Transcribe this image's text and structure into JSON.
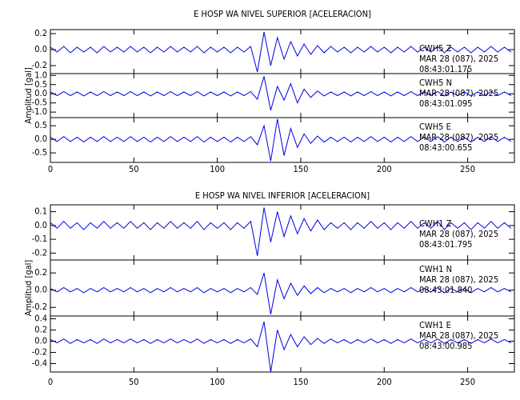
{
  "chart_data": [
    {
      "type": "line",
      "title": "E HOSP WA NIVEL SUPERIOR [ACELERACION]",
      "ylabel": "Amplitud [gal]",
      "xlim": [
        0,
        278
      ],
      "xticks": [
        0,
        50,
        100,
        150,
        200,
        250
      ],
      "x": [
        0,
        4,
        8,
        12,
        16,
        20,
        24,
        28,
        32,
        36,
        40,
        44,
        48,
        52,
        56,
        60,
        64,
        68,
        72,
        76,
        80,
        84,
        88,
        92,
        96,
        100,
        104,
        108,
        112,
        116,
        120,
        124,
        128,
        132,
        136,
        140,
        144,
        148,
        152,
        156,
        160,
        164,
        168,
        172,
        176,
        180,
        184,
        188,
        192,
        196,
        200,
        204,
        208,
        212,
        216,
        220,
        224,
        228,
        232,
        236,
        240,
        244,
        248,
        252,
        256,
        260,
        264,
        268,
        272,
        276
      ],
      "series": [
        {
          "label": [
            "CWH5   Z",
            "MAR 28 (087), 2025",
            "08:43:01.175"
          ],
          "color": "#0000e6",
          "ylim": [
            -0.3,
            0.25
          ],
          "yticks": [
            0.2,
            {
              "value": 0,
              "label": "0.0"
            },
            -0.2
          ],
          "values": [
            0.03,
            -0.03,
            0.04,
            -0.04,
            0.03,
            -0.03,
            0.03,
            -0.04,
            0.04,
            -0.03,
            0.03,
            -0.03,
            0.04,
            -0.03,
            0.03,
            -0.04,
            0.03,
            -0.03,
            0.04,
            -0.03,
            0.03,
            -0.03,
            0.04,
            -0.04,
            0.03,
            -0.03,
            0.03,
            -0.04,
            0.03,
            -0.03,
            0.04,
            -0.28,
            0.22,
            -0.2,
            0.15,
            -0.12,
            0.1,
            -0.08,
            0.07,
            -0.06,
            0.05,
            -0.04,
            0.04,
            -0.03,
            0.03,
            -0.04,
            0.03,
            -0.03,
            0.04,
            -0.03,
            0.03,
            -0.04,
            0.03,
            -0.03,
            0.04,
            -0.03,
            0.03,
            -0.03,
            0.04,
            -0.04,
            0.03,
            -0.03,
            0.03,
            -0.04,
            0.03,
            -0.03,
            0.04,
            -0.03,
            0.03,
            -0.03
          ]
        },
        {
          "label": [
            "CWH5   N",
            "MAR 28 (087), 2025",
            "08:43:01.095"
          ],
          "color": "#0000e6",
          "ylim": [
            -1.3,
            1.1
          ],
          "yticks": [
            {
              "value": 1,
              "label": "1.0"
            },
            0.5,
            {
              "value": 0,
              "label": "0.0"
            },
            -0.5,
            {
              "value": -1,
              "label": "-1.0"
            }
          ],
          "values": [
            0.1,
            -0.1,
            0.12,
            -0.1,
            0.1,
            -0.12,
            0.1,
            -0.1,
            0.12,
            -0.1,
            0.1,
            -0.1,
            0.12,
            -0.1,
            0.1,
            -0.12,
            0.1,
            -0.1,
            0.12,
            -0.1,
            0.1,
            -0.1,
            0.12,
            -0.12,
            0.1,
            -0.1,
            0.1,
            -0.12,
            0.1,
            -0.1,
            0.12,
            -0.3,
            0.95,
            -0.9,
            0.4,
            -0.35,
            0.55,
            -0.5,
            0.25,
            -0.2,
            0.15,
            -0.12,
            0.1,
            -0.1,
            0.1,
            -0.12,
            0.1,
            -0.1,
            0.12,
            -0.1,
            0.1,
            -0.12,
            0.1,
            -0.1,
            0.12,
            -0.1,
            0.1,
            -0.1,
            0.12,
            -0.12,
            0.1,
            -0.1,
            0.1,
            -0.12,
            0.1,
            -0.1,
            0.12,
            -0.1,
            0.1,
            -0.1
          ]
        },
        {
          "label": [
            "CWH5   E",
            "MAR 28 (087), 2025",
            "08:43:00.655"
          ],
          "color": "#0000e6",
          "ylim": [
            -0.85,
            0.8
          ],
          "yticks": [
            0.5,
            {
              "value": 0,
              "label": "0.0"
            },
            -0.5
          ],
          "values": [
            0.08,
            -0.08,
            0.1,
            -0.08,
            0.08,
            -0.1,
            0.08,
            -0.08,
            0.1,
            -0.08,
            0.08,
            -0.08,
            0.1,
            -0.08,
            0.08,
            -0.1,
            0.08,
            -0.08,
            0.1,
            -0.08,
            0.08,
            -0.08,
            0.1,
            -0.1,
            0.08,
            -0.08,
            0.08,
            -0.1,
            0.08,
            -0.08,
            0.1,
            -0.2,
            0.5,
            -0.8,
            0.75,
            -0.6,
            0.4,
            -0.3,
            0.2,
            -0.15,
            0.12,
            -0.1,
            0.08,
            -0.08,
            0.08,
            -0.1,
            0.08,
            -0.08,
            0.1,
            -0.08,
            0.08,
            -0.1,
            0.08,
            -0.08,
            0.1,
            -0.08,
            0.08,
            -0.08,
            0.1,
            -0.1,
            0.08,
            -0.08,
            0.08,
            -0.1,
            0.08,
            -0.08,
            0.1,
            -0.08,
            0.08,
            -0.08
          ]
        }
      ]
    },
    {
      "type": "line",
      "title": "E HOSP WA NIVEL INFERIOR [ACELERACION]",
      "ylabel": "Amplitud [gal]",
      "xlim": [
        0,
        278
      ],
      "xticks": [
        0,
        50,
        100,
        150,
        200,
        250
      ],
      "x": [
        0,
        4,
        8,
        12,
        16,
        20,
        24,
        28,
        32,
        36,
        40,
        44,
        48,
        52,
        56,
        60,
        64,
        68,
        72,
        76,
        80,
        84,
        88,
        92,
        96,
        100,
        104,
        108,
        112,
        116,
        120,
        124,
        128,
        132,
        136,
        140,
        144,
        148,
        152,
        156,
        160,
        164,
        168,
        172,
        176,
        180,
        184,
        188,
        192,
        196,
        200,
        204,
        208,
        212,
        216,
        220,
        224,
        228,
        232,
        236,
        240,
        244,
        248,
        252,
        256,
        260,
        264,
        268,
        272,
        276
      ],
      "series": [
        {
          "label": [
            "CWH1   Z",
            "MAR 28 (087), 2025",
            "08:43:01.795"
          ],
          "color": "#0000e6",
          "ylim": [
            -0.25,
            0.15
          ],
          "yticks": [
            0.1,
            {
              "value": 0,
              "label": "0.0"
            },
            -0.1,
            -0.2
          ],
          "values": [
            0.02,
            -0.02,
            0.03,
            -0.02,
            0.02,
            -0.03,
            0.02,
            -0.02,
            0.03,
            -0.02,
            0.02,
            -0.02,
            0.03,
            -0.02,
            0.02,
            -0.03,
            0.02,
            -0.02,
            0.03,
            -0.02,
            0.02,
            -0.02,
            0.03,
            -0.03,
            0.02,
            -0.02,
            0.02,
            -0.03,
            0.02,
            -0.02,
            0.03,
            -0.22,
            0.13,
            -0.12,
            0.1,
            -0.08,
            0.07,
            -0.06,
            0.05,
            -0.04,
            0.04,
            -0.03,
            0.02,
            -0.02,
            0.02,
            -0.03,
            0.02,
            -0.02,
            0.03,
            -0.02,
            0.02,
            -0.03,
            0.02,
            -0.02,
            0.03,
            -0.02,
            0.02,
            -0.02,
            0.03,
            -0.03,
            0.02,
            -0.02,
            0.02,
            -0.03,
            0.02,
            -0.02,
            0.03,
            -0.02,
            0.02,
            -0.02
          ]
        },
        {
          "label": [
            "CWH1   N",
            "MAR 28 (087), 2025",
            "08:43:01.840"
          ],
          "color": "#0000e6",
          "ylim": [
            -0.3,
            0.35
          ],
          "yticks": [
            0.2,
            {
              "value": 0,
              "label": "0.0"
            },
            -0.2
          ],
          "values": [
            0.02,
            -0.02,
            0.03,
            -0.02,
            0.02,
            -0.03,
            0.02,
            -0.02,
            0.03,
            -0.02,
            0.02,
            -0.02,
            0.03,
            -0.02,
            0.02,
            -0.03,
            0.02,
            -0.02,
            0.03,
            -0.02,
            0.02,
            -0.02,
            0.03,
            -0.03,
            0.02,
            -0.02,
            0.02,
            -0.03,
            0.02,
            -0.02,
            0.03,
            -0.05,
            0.2,
            -0.28,
            0.12,
            -0.1,
            0.08,
            -0.06,
            0.05,
            -0.04,
            0.03,
            -0.03,
            0.02,
            -0.02,
            0.02,
            -0.03,
            0.02,
            -0.02,
            0.03,
            -0.02,
            0.02,
            -0.03,
            0.02,
            -0.02,
            0.03,
            -0.02,
            0.02,
            -0.02,
            0.03,
            -0.03,
            0.02,
            -0.02,
            0.02,
            -0.03,
            0.02,
            -0.02,
            0.03,
            -0.02,
            0.02,
            -0.02
          ]
        },
        {
          "label": [
            "CWH1   E",
            "MAR 28 (087), 2025",
            "08:43:00.985"
          ],
          "color": "#0000e6",
          "ylim": [
            -0.55,
            0.45
          ],
          "yticks": [
            0.4,
            0.2,
            {
              "value": 0,
              "label": "0.0"
            },
            -0.2,
            -0.4
          ],
          "values": [
            0.03,
            -0.03,
            0.04,
            -0.04,
            0.03,
            -0.03,
            0.03,
            -0.04,
            0.04,
            -0.03,
            0.03,
            -0.03,
            0.04,
            -0.03,
            0.03,
            -0.04,
            0.03,
            -0.03,
            0.04,
            -0.03,
            0.03,
            -0.03,
            0.04,
            -0.04,
            0.03,
            -0.03,
            0.03,
            -0.04,
            0.03,
            -0.03,
            0.04,
            -0.1,
            0.35,
            -0.55,
            0.2,
            -0.15,
            0.12,
            -0.1,
            0.08,
            -0.06,
            0.05,
            -0.04,
            0.04,
            -0.03,
            0.03,
            -0.04,
            0.03,
            -0.03,
            0.04,
            -0.03,
            0.03,
            -0.04,
            0.03,
            -0.03,
            0.04,
            -0.03,
            0.03,
            -0.03,
            0.04,
            -0.04,
            0.03,
            -0.03,
            0.03,
            -0.04,
            0.03,
            -0.03,
            0.04,
            -0.03,
            0.03,
            -0.03
          ]
        }
      ]
    }
  ]
}
